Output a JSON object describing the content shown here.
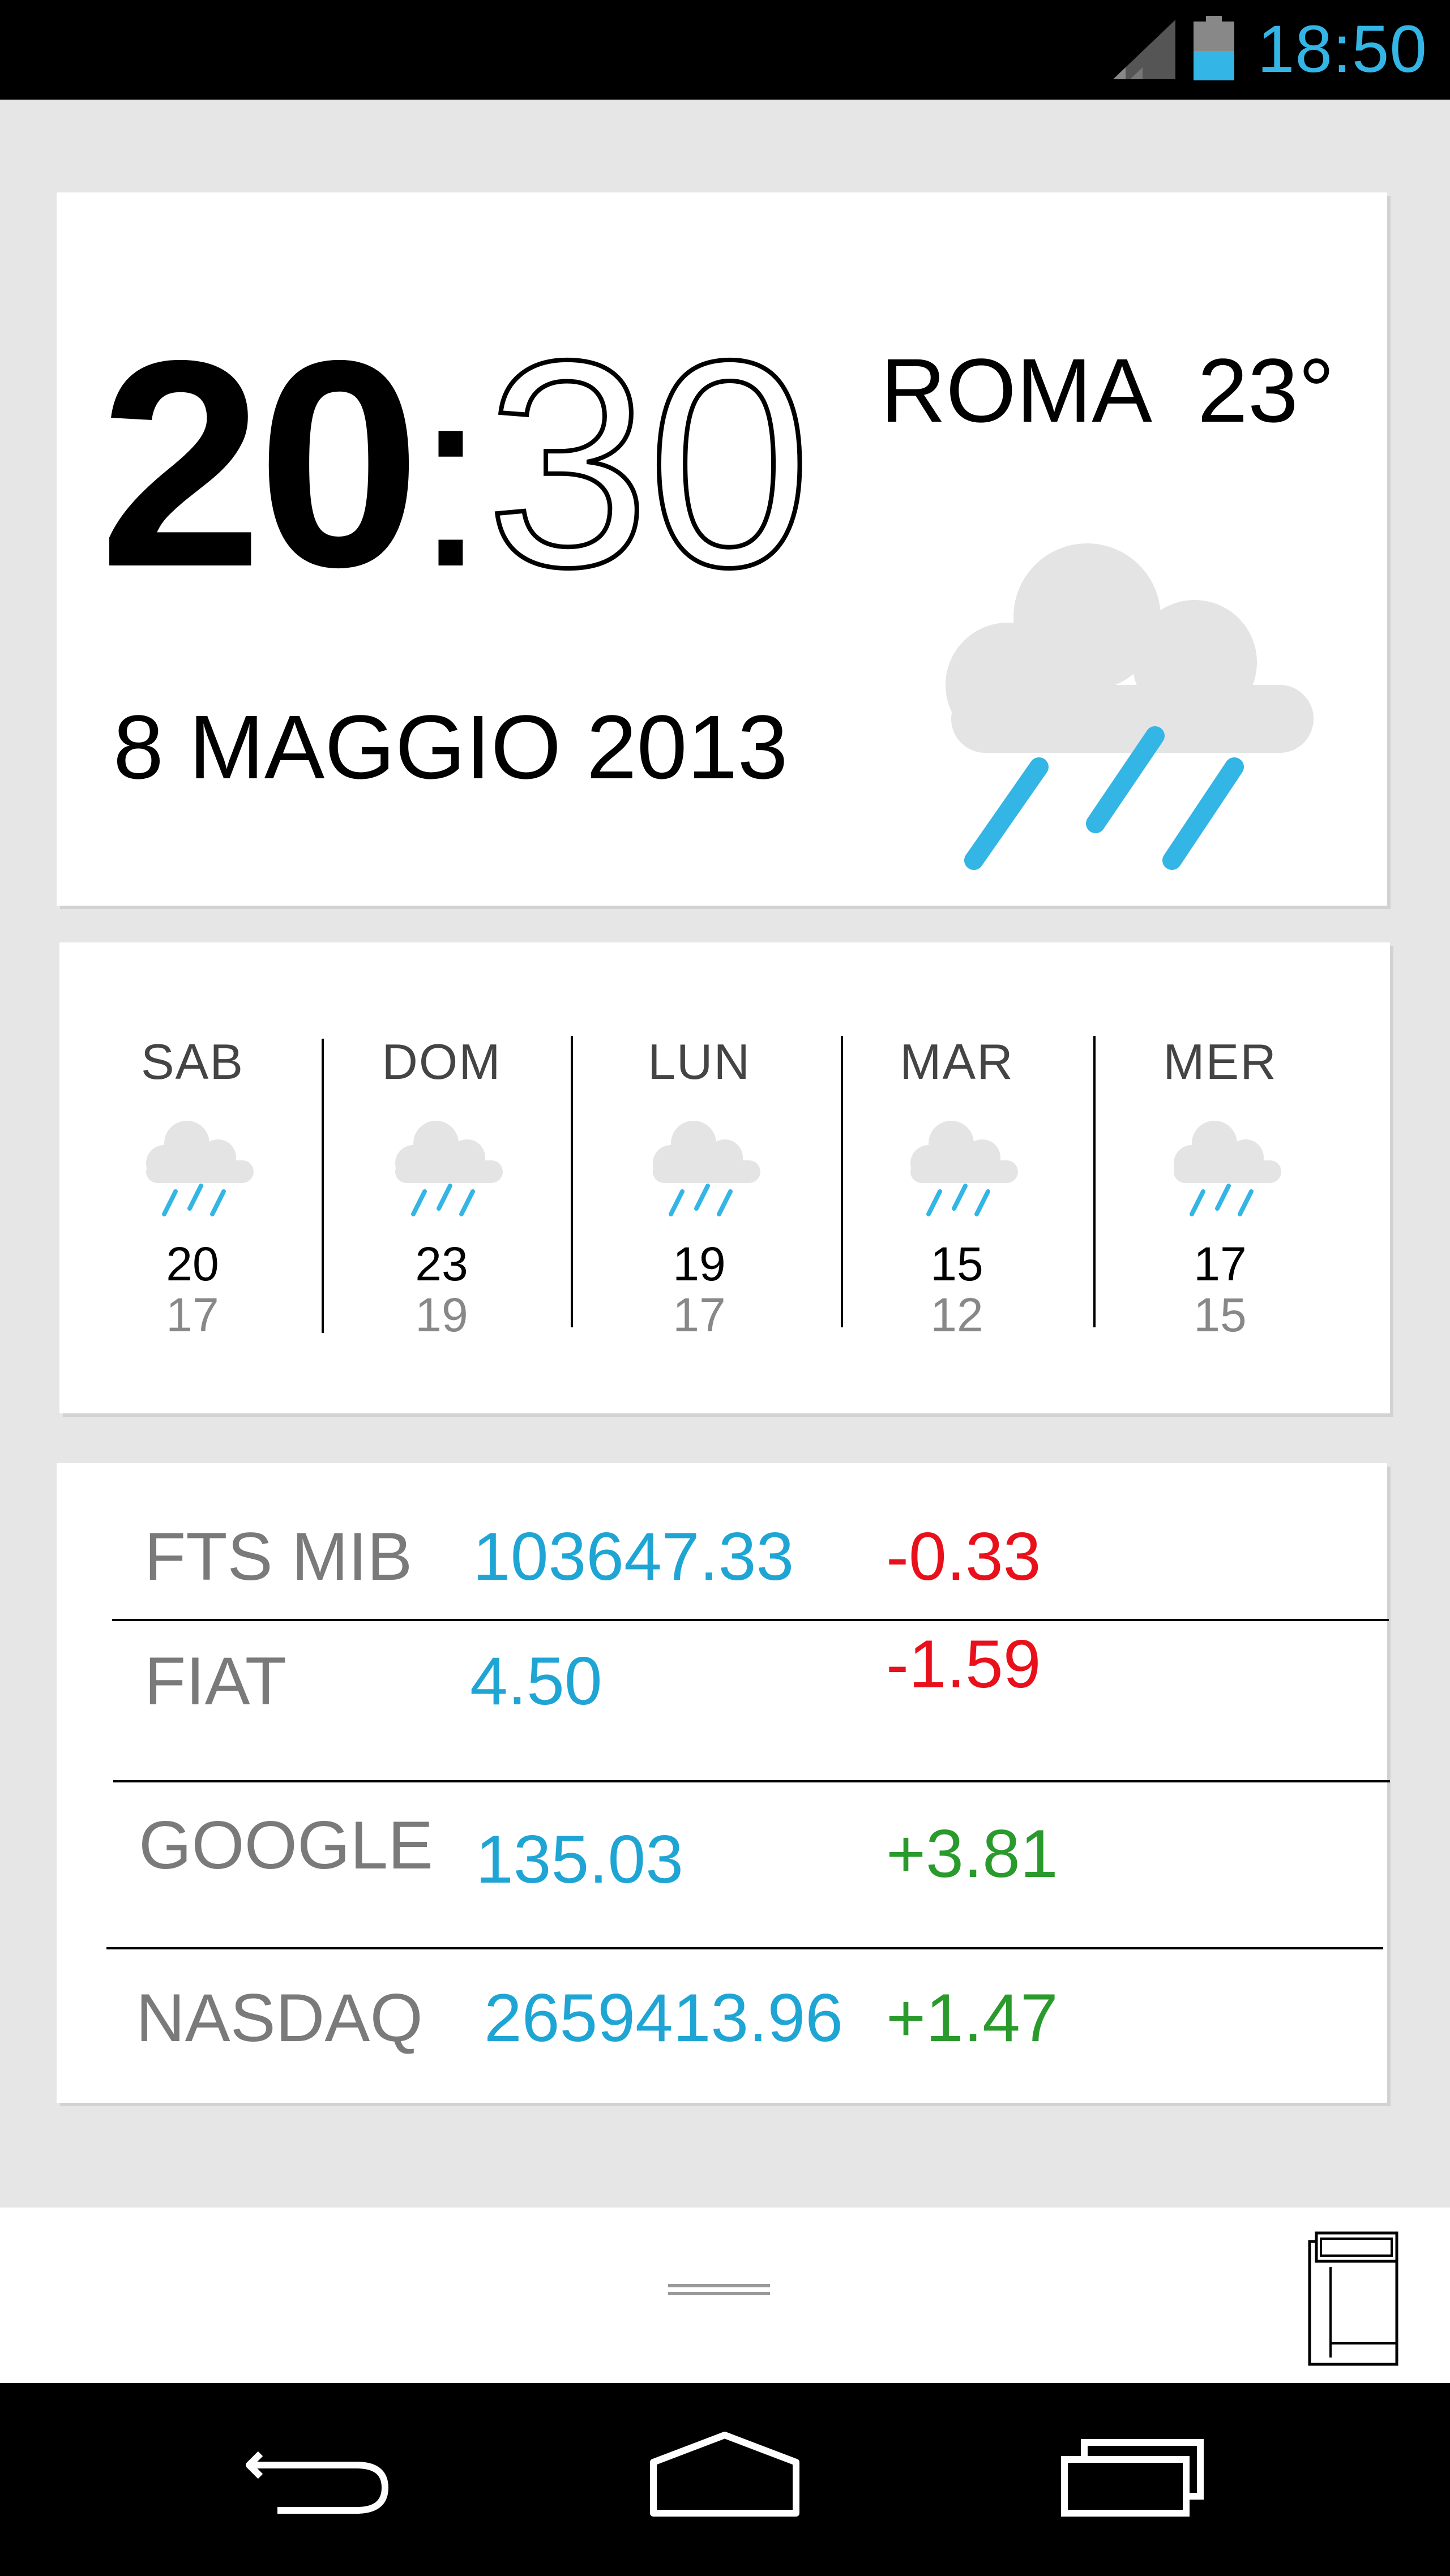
{
  "status_bar": {
    "time": "18:50",
    "icons": [
      "signal-icon",
      "battery-icon"
    ],
    "accent_color": "#33b5e5"
  },
  "clock_card": {
    "hours": "20",
    "separator": ":",
    "minutes": "30",
    "date": "8 MAGGIO 2013",
    "city": "ROMA",
    "temperature": "23°",
    "weather_icon": "rain-cloud-icon"
  },
  "forecast": {
    "days": [
      {
        "day": "SAB",
        "high": "20",
        "low": "17",
        "icon": "rain-cloud-icon"
      },
      {
        "day": "DOM",
        "high": "23",
        "low": "19",
        "icon": "rain-cloud-icon"
      },
      {
        "day": "LUN",
        "high": "19",
        "low": "17",
        "icon": "rain-cloud-icon"
      },
      {
        "day": "MAR",
        "high": "15",
        "low": "12",
        "icon": "rain-cloud-icon"
      },
      {
        "day": "MER",
        "high": "17",
        "low": "15",
        "icon": "rain-cloud-icon"
      }
    ]
  },
  "stocks": {
    "rows": [
      {
        "name": "FTS MIB",
        "value": "103647.33",
        "change": "-0.33",
        "direction": "down"
      },
      {
        "name": "FIAT",
        "value": "4.50",
        "change": "-1.59",
        "direction": "down"
      },
      {
        "name": "GOOGLE",
        "value": "135.03",
        "change": "+3.81",
        "direction": "up"
      },
      {
        "name": "NASDAQ",
        "value": "2659413.96",
        "change": "+1.47",
        "direction": "up"
      }
    ],
    "colors": {
      "value": "#1fa5d4",
      "down": "#e8101b",
      "up": "#2a9a2c"
    }
  },
  "drawer": {
    "icons": [
      "drag-handle-icon",
      "widget-layout-icon"
    ]
  },
  "nav_bar": {
    "icons": [
      "back-icon",
      "home-icon",
      "recent-apps-icon"
    ]
  }
}
